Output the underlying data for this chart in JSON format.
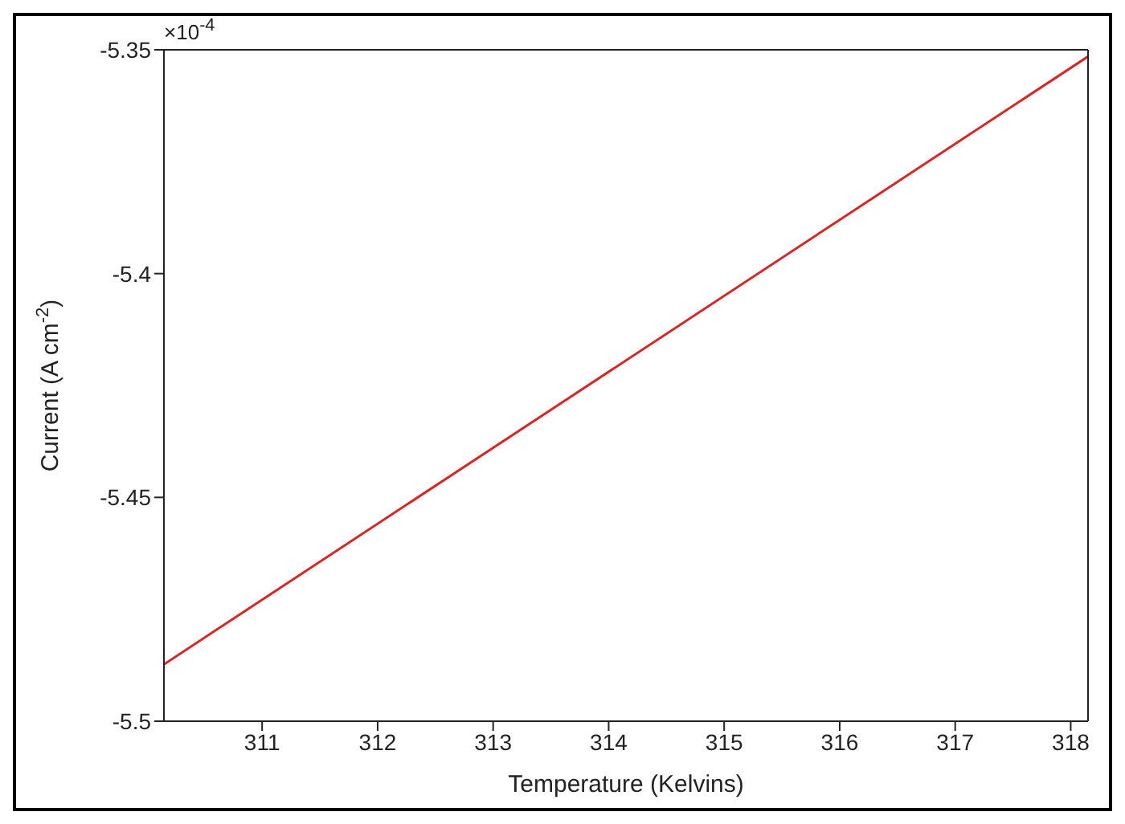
{
  "chart_data": {
    "type": "line",
    "xlabel": "Temperature (Kelvins)",
    "ylabel": "Current (A cm$^{-2}$)",
    "annotations": [
      "×10$^{-4}$"
    ],
    "x": [
      310.15,
      318.15
    ],
    "series": [
      {
        "color": "#d62728",
        "values": [
          -5.4873,
          -5.3515
        ]
      }
    ],
    "xlim": [
      310.15,
      318.15
    ],
    "xticks": [
      311,
      312,
      313,
      314,
      315,
      316,
      317,
      318
    ],
    "ylim": [
      -5.5,
      -5.35
    ],
    "yticks": [
      -5.5,
      -5.45,
      -5.4,
      -5.35
    ],
    "legend": false,
    "marker": "none",
    "line_style": "solid"
  }
}
